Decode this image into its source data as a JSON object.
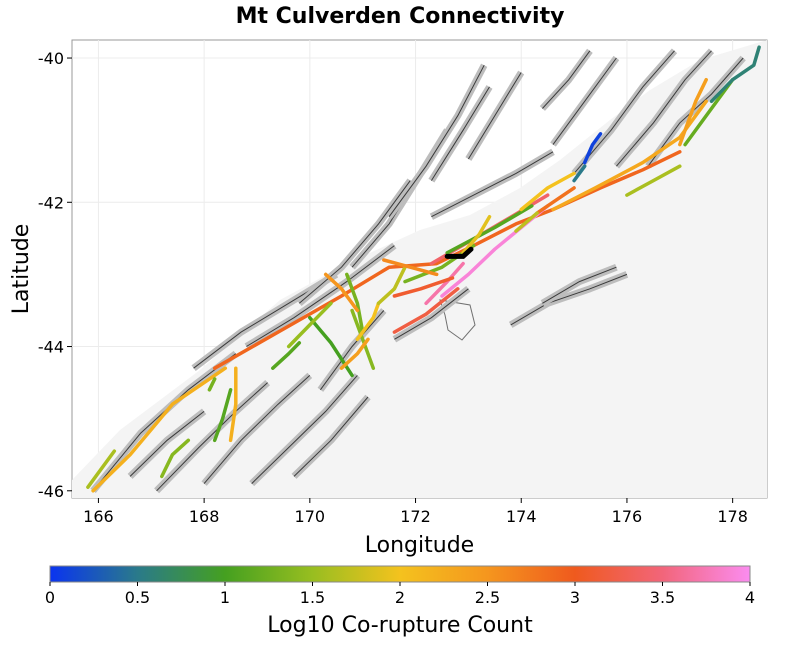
{
  "chart_data": {
    "type": "map",
    "title": "Mt Culverden Connectivity",
    "xlabel": "Longitude",
    "ylabel": "Latitude",
    "xlim": [
      165.5,
      178.65
    ],
    "ylim": [
      -46.1,
      -39.75
    ],
    "x_ticks": [
      166,
      168,
      170,
      172,
      174,
      176,
      178
    ],
    "y_ticks": [
      -40,
      -42,
      -44,
      -46
    ],
    "grid": true,
    "colorbar": {
      "label": "Log10 Co-rupture Count",
      "range": [
        0,
        4
      ],
      "ticks": [
        "0",
        "0.5",
        "1",
        "1.5",
        "2",
        "2.5",
        "3",
        "3.5",
        "4"
      ],
      "stops": [
        {
          "value": 0,
          "color": "#0a34f0"
        },
        {
          "value": 0.5,
          "color": "#2a7a8a"
        },
        {
          "value": 1,
          "color": "#45a020"
        },
        {
          "value": 1.5,
          "color": "#98be20"
        },
        {
          "value": 2,
          "color": "#f4c21e"
        },
        {
          "value": 2.5,
          "color": "#f5961e"
        },
        {
          "value": 3,
          "color": "#ef5a1e"
        },
        {
          "value": 3.5,
          "color": "#f2657a"
        },
        {
          "value": 4,
          "color": "#fb8cf0"
        }
      ]
    },
    "source_fault": {
      "name": "Mt Culverden",
      "path": [
        [
          172.6,
          -42.75
        ],
        [
          172.9,
          -42.75
        ],
        [
          173.05,
          -42.65
        ]
      ]
    },
    "background_faults": [
      [
        [
          165.9,
          -46.0
        ],
        [
          166.8,
          -45.2
        ],
        [
          167.7,
          -44.6
        ],
        [
          168.6,
          -44.1
        ]
      ],
      [
        [
          166.6,
          -45.8
        ],
        [
          167.3,
          -45.3
        ],
        [
          168.0,
          -44.9
        ]
      ],
      [
        [
          167.1,
          -46.0
        ],
        [
          167.9,
          -45.4
        ],
        [
          168.6,
          -44.9
        ],
        [
          169.2,
          -44.5
        ]
      ],
      [
        [
          168.0,
          -45.9
        ],
        [
          168.7,
          -45.3
        ],
        [
          169.4,
          -44.8
        ],
        [
          170.0,
          -44.4
        ]
      ],
      [
        [
          168.9,
          -45.9
        ],
        [
          169.6,
          -45.4
        ],
        [
          170.3,
          -44.9
        ],
        [
          170.9,
          -44.4
        ]
      ],
      [
        [
          169.7,
          -45.8
        ],
        [
          170.4,
          -45.3
        ],
        [
          171.1,
          -44.7
        ]
      ],
      [
        [
          167.8,
          -44.3
        ],
        [
          168.7,
          -43.8
        ],
        [
          169.6,
          -43.4
        ],
        [
          170.5,
          -43.0
        ]
      ],
      [
        [
          168.8,
          -44.0
        ],
        [
          169.7,
          -43.6
        ],
        [
          170.7,
          -43.1
        ],
        [
          171.6,
          -42.6
        ]
      ],
      [
        [
          169.8,
          -43.4
        ],
        [
          170.6,
          -42.9
        ],
        [
          171.3,
          -42.3
        ],
        [
          171.9,
          -41.7
        ]
      ],
      [
        [
          170.8,
          -42.9
        ],
        [
          171.5,
          -42.3
        ],
        [
          172.1,
          -41.6
        ],
        [
          172.6,
          -41.0
        ]
      ],
      [
        [
          171.5,
          -42.2
        ],
        [
          172.2,
          -41.5
        ],
        [
          172.8,
          -40.8
        ],
        [
          173.3,
          -40.1
        ]
      ],
      [
        [
          172.3,
          -41.7
        ],
        [
          172.9,
          -41.0
        ],
        [
          173.4,
          -40.4
        ]
      ],
      [
        [
          173.0,
          -41.4
        ],
        [
          173.5,
          -40.8
        ],
        [
          174.0,
          -40.2
        ]
      ],
      [
        [
          174.6,
          -41.2
        ],
        [
          175.2,
          -40.6
        ],
        [
          175.8,
          -40.0
        ]
      ],
      [
        [
          175.0,
          -41.6
        ],
        [
          175.7,
          -41.0
        ],
        [
          176.3,
          -40.4
        ],
        [
          176.9,
          -39.9
        ]
      ],
      [
        [
          175.8,
          -41.5
        ],
        [
          176.5,
          -40.9
        ],
        [
          177.1,
          -40.3
        ],
        [
          177.6,
          -39.9
        ]
      ],
      [
        [
          176.4,
          -41.5
        ],
        [
          177.0,
          -40.9
        ],
        [
          177.6,
          -40.5
        ],
        [
          178.2,
          -40.0
        ]
      ],
      [
        [
          174.4,
          -40.7
        ],
        [
          174.9,
          -40.3
        ],
        [
          175.3,
          -39.9
        ]
      ],
      [
        [
          171.6,
          -43.9
        ],
        [
          172.3,
          -43.6
        ],
        [
          173.0,
          -43.2
        ]
      ],
      [
        [
          173.8,
          -43.7
        ],
        [
          174.5,
          -43.4
        ],
        [
          175.3,
          -43.2
        ],
        [
          176.0,
          -43.0
        ]
      ],
      [
        [
          174.4,
          -43.4
        ],
        [
          175.1,
          -43.1
        ],
        [
          175.8,
          -42.9
        ]
      ],
      [
        [
          170.2,
          -44.6
        ],
        [
          170.8,
          -44.0
        ],
        [
          171.4,
          -43.5
        ]
      ],
      [
        [
          172.3,
          -42.2
        ],
        [
          173.1,
          -41.9
        ],
        [
          173.9,
          -41.6
        ],
        [
          174.6,
          -41.3
        ]
      ]
    ],
    "rupture_faults": [
      {
        "value": 2.2,
        "path": [
          [
            165.9,
            -46.0
          ],
          [
            166.6,
            -45.5
          ],
          [
            167.4,
            -44.8
          ],
          [
            168.4,
            -44.3
          ]
        ]
      },
      {
        "value": 2.9,
        "path": [
          [
            168.2,
            -44.3
          ],
          [
            169.4,
            -43.8
          ],
          [
            170.6,
            -43.3
          ],
          [
            171.5,
            -42.9
          ],
          [
            172.4,
            -42.85
          ],
          [
            173.1,
            -42.6
          ],
          [
            173.9,
            -42.3
          ],
          [
            174.6,
            -42.1
          ],
          [
            175.5,
            -41.8
          ],
          [
            176.3,
            -41.55
          ],
          [
            177.0,
            -41.3
          ]
        ]
      },
      {
        "value": 3.4,
        "path": [
          [
            172.3,
            -42.85
          ],
          [
            173.0,
            -42.55
          ],
          [
            173.7,
            -42.25
          ],
          [
            174.5,
            -41.9
          ]
        ]
      },
      {
        "value": 3.9,
        "path": [
          [
            172.5,
            -43.3
          ],
          [
            173.0,
            -43.0
          ],
          [
            173.5,
            -42.65
          ],
          [
            174.0,
            -42.35
          ],
          [
            174.5,
            -42.05
          ]
        ]
      },
      {
        "value": 3.7,
        "path": [
          [
            172.2,
            -43.4
          ],
          [
            172.6,
            -43.1
          ],
          [
            172.9,
            -42.85
          ]
        ]
      },
      {
        "value": 3.1,
        "path": [
          [
            171.6,
            -43.3
          ],
          [
            172.1,
            -43.2
          ],
          [
            172.7,
            -43.05
          ]
        ]
      },
      {
        "value": 3.2,
        "path": [
          [
            171.6,
            -43.8
          ],
          [
            172.2,
            -43.55
          ],
          [
            172.8,
            -43.2
          ]
        ]
      },
      {
        "value": 2.3,
        "path": [
          [
            174.6,
            -42.1
          ],
          [
            175.4,
            -41.8
          ],
          [
            176.3,
            -41.45
          ],
          [
            177.0,
            -41.1
          ],
          [
            177.5,
            -40.6
          ]
        ]
      },
      {
        "value": 2.4,
        "path": [
          [
            177.0,
            -41.2
          ],
          [
            177.3,
            -40.6
          ],
          [
            177.5,
            -40.3
          ]
        ]
      },
      {
        "value": 1.2,
        "path": [
          [
            177.1,
            -41.2
          ],
          [
            177.6,
            -40.7
          ],
          [
            178.0,
            -40.3
          ]
        ]
      },
      {
        "value": 0.6,
        "path": [
          [
            177.6,
            -40.6
          ],
          [
            178.0,
            -40.3
          ],
          [
            178.4,
            -40.1
          ],
          [
            178.5,
            -39.85
          ]
        ]
      },
      {
        "value": 0.1,
        "path": [
          [
            175.2,
            -41.45
          ],
          [
            175.35,
            -41.2
          ],
          [
            175.5,
            -41.05
          ]
        ]
      },
      {
        "value": 0.5,
        "path": [
          [
            175.0,
            -41.7
          ],
          [
            175.2,
            -41.5
          ]
        ]
      },
      {
        "value": 1.6,
        "path": [
          [
            176.0,
            -41.9
          ],
          [
            176.5,
            -41.7
          ],
          [
            177.0,
            -41.5
          ]
        ]
      },
      {
        "value": 1.1,
        "path": [
          [
            172.6,
            -42.7
          ],
          [
            173.5,
            -42.35
          ],
          [
            174.2,
            -42.05
          ]
        ]
      },
      {
        "value": 1.3,
        "path": [
          [
            171.8,
            -43.1
          ],
          [
            172.5,
            -42.9
          ],
          [
            173.1,
            -42.6
          ]
        ]
      },
      {
        "value": 2.0,
        "path": [
          [
            174.0,
            -42.1
          ],
          [
            174.5,
            -41.8
          ],
          [
            175.0,
            -41.6
          ]
        ]
      },
      {
        "value": 1.0,
        "path": [
          [
            170.0,
            -43.6
          ],
          [
            170.4,
            -43.95
          ],
          [
            170.8,
            -44.4
          ]
        ]
      },
      {
        "value": 1.4,
        "path": [
          [
            170.8,
            -43.5
          ],
          [
            171.0,
            -43.9
          ],
          [
            171.2,
            -44.3
          ]
        ]
      },
      {
        "value": 1.5,
        "path": [
          [
            169.6,
            -44.0
          ],
          [
            170.0,
            -43.7
          ],
          [
            170.4,
            -43.4
          ]
        ]
      },
      {
        "value": 1.3,
        "path": [
          [
            170.7,
            -43.0
          ],
          [
            170.9,
            -43.4
          ],
          [
            171.0,
            -43.8
          ]
        ]
      },
      {
        "value": 2.4,
        "path": [
          [
            171.1,
            -43.9
          ],
          [
            170.9,
            -44.1
          ],
          [
            170.6,
            -44.3
          ]
        ]
      },
      {
        "value": 2.0,
        "path": [
          [
            171.3,
            -43.4
          ],
          [
            171.2,
            -43.6
          ],
          [
            170.9,
            -43.9
          ]
        ]
      },
      {
        "value": 1.7,
        "path": [
          [
            171.8,
            -42.9
          ],
          [
            171.6,
            -43.2
          ],
          [
            171.3,
            -43.4
          ]
        ]
      },
      {
        "value": 2.6,
        "path": [
          [
            171.4,
            -42.8
          ],
          [
            171.9,
            -42.9
          ],
          [
            172.4,
            -43.0
          ]
        ]
      },
      {
        "value": 1.3,
        "path": [
          [
            168.2,
            -44.45
          ],
          [
            168.1,
            -44.6
          ]
        ]
      },
      {
        "value": 1.4,
        "path": [
          [
            167.7,
            -45.3
          ],
          [
            167.4,
            -45.5
          ],
          [
            167.2,
            -45.8
          ]
        ]
      },
      {
        "value": 1.1,
        "path": [
          [
            168.5,
            -44.6
          ],
          [
            168.35,
            -45.0
          ],
          [
            168.2,
            -45.3
          ]
        ]
      },
      {
        "value": 2.2,
        "path": [
          [
            168.6,
            -44.3
          ],
          [
            168.6,
            -44.8
          ],
          [
            168.5,
            -45.3
          ]
        ]
      },
      {
        "value": 1.6,
        "path": [
          [
            166.3,
            -45.45
          ],
          [
            166.0,
            -45.75
          ],
          [
            165.8,
            -45.95
          ]
        ]
      },
      {
        "value": 1.1,
        "path": [
          [
            169.8,
            -43.95
          ],
          [
            169.6,
            -44.1
          ],
          [
            169.3,
            -44.3
          ]
        ]
      },
      {
        "value": 2.5,
        "path": [
          [
            170.3,
            -43.0
          ],
          [
            170.6,
            -43.2
          ],
          [
            170.9,
            -43.5
          ]
        ]
      },
      {
        "value": 1.9,
        "path": [
          [
            172.9,
            -42.7
          ],
          [
            173.2,
            -42.45
          ],
          [
            173.4,
            -42.2
          ]
        ]
      },
      {
        "value": 2.8,
        "path": [
          [
            174.3,
            -42.15
          ],
          [
            174.7,
            -41.95
          ],
          [
            175.0,
            -41.8
          ]
        ]
      },
      {
        "value": 1.7,
        "path": [
          [
            173.9,
            -42.4
          ],
          [
            174.3,
            -42.15
          ]
        ]
      }
    ]
  }
}
